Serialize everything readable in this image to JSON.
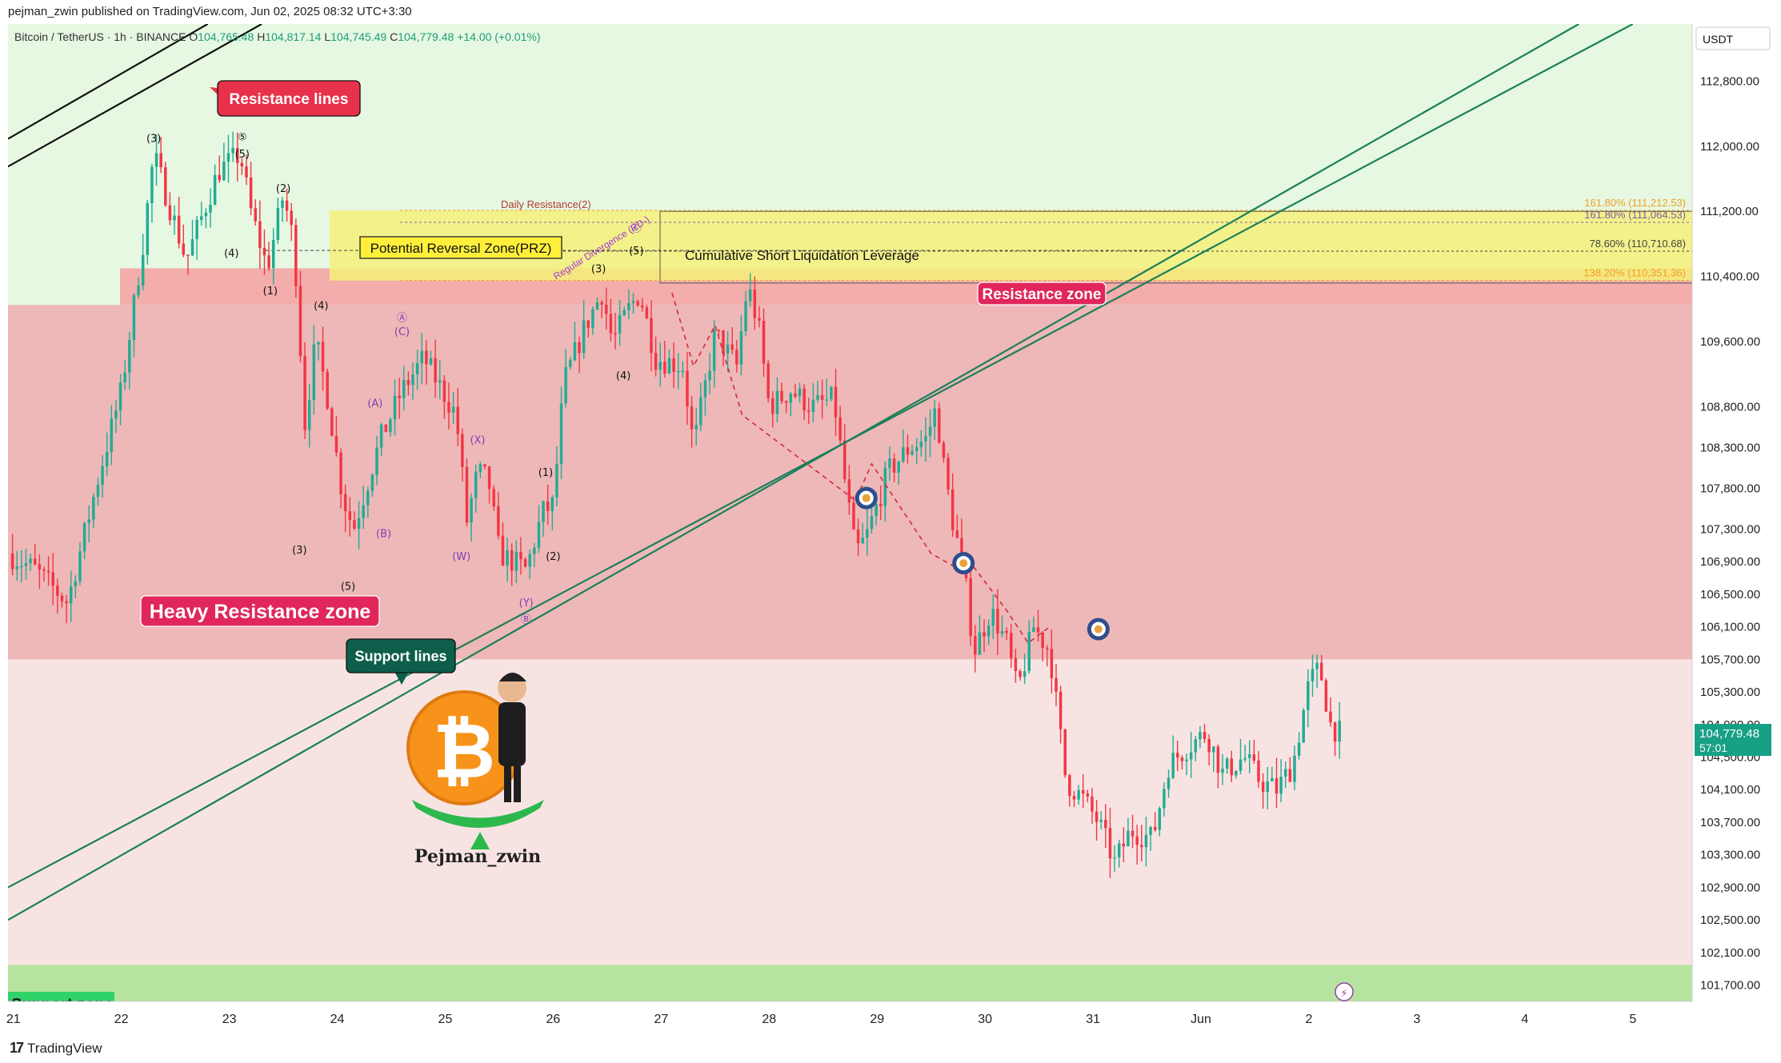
{
  "header": {
    "published": "pejman_zwin published on TradingView.com, Jun 02, 2025 08:32 UTC+3:30",
    "symbol": "Bitcoin / TetherUS · 1h · BINANCE",
    "open_label": "O",
    "open": "104,765.48",
    "high_label": "H",
    "high": "104,817.14",
    "low_label": "L",
    "low": "104,745.49",
    "close_label": "C",
    "close": "104,779.48",
    "change": "+14.00 (+0.01%)"
  },
  "price_axis": {
    "currency": "USDT",
    "current_price": "104,779.48",
    "countdown": "57:01"
  },
  "footer": {
    "logo_text": "TradingView"
  },
  "annotations": {
    "resistance_lines": "Resistance lines",
    "support_lines": "Support lines",
    "heavy_resistance_zone": "Heavy Resistance zone",
    "resistance_zone": "Resistance zone",
    "prz": "Potential Reversal Zone(PRZ)",
    "short_liquidation": "Cumulative Short Liquidation Leverage",
    "daily_resistance": "Daily Resistance(2)",
    "regular_divergence": "Regular Divergence (RD-)",
    "support_zone_partial": "Support zone",
    "author": "Pejman_zwin",
    "wave_labels": [
      {
        "t": "(3)",
        "x": 22.3,
        "y": 112050,
        "c": "#111"
      },
      {
        "t": "⑤",
        "x": 23.12,
        "y": 112070,
        "c": "#111"
      },
      {
        "t": "(5)",
        "x": 23.12,
        "y": 111860,
        "c": "#111"
      },
      {
        "t": "(2)",
        "x": 23.5,
        "y": 111440,
        "c": "#111"
      },
      {
        "t": "(4)",
        "x": 23.02,
        "y": 110640,
        "c": "#111"
      },
      {
        "t": "(1)",
        "x": 23.38,
        "y": 110180,
        "c": "#111"
      },
      {
        "t": "(4)",
        "x": 23.85,
        "y": 110000,
        "c": "#111"
      },
      {
        "t": "(3)",
        "x": 23.65,
        "y": 107000,
        "c": "#111"
      },
      {
        "t": "(5)",
        "x": 24.1,
        "y": 106550,
        "c": "#111"
      },
      {
        "t": "Ⓐ",
        "x": 24.6,
        "y": 109850,
        "c": "#7b3fb5"
      },
      {
        "t": "(C)",
        "x": 24.6,
        "y": 109680,
        "c": "#7b3fb5"
      },
      {
        "t": "(A)",
        "x": 24.35,
        "y": 108800,
        "c": "#7b3fb5"
      },
      {
        "t": "(B)",
        "x": 24.43,
        "y": 107200,
        "c": "#7b3fb5"
      },
      {
        "t": "(X)",
        "x": 25.3,
        "y": 108350,
        "c": "#7b3fb5"
      },
      {
        "t": "(W)",
        "x": 25.15,
        "y": 106920,
        "c": "#7b3fb5"
      },
      {
        "t": "(Y)",
        "x": 25.75,
        "y": 106350,
        "c": "#7b3fb5"
      },
      {
        "t": "Ⓑ",
        "x": 25.75,
        "y": 106150,
        "c": "#7b3fb5"
      },
      {
        "t": "(1)",
        "x": 25.93,
        "y": 107950,
        "c": "#111"
      },
      {
        "t": "(2)",
        "x": 26.0,
        "y": 106920,
        "c": "#111"
      },
      {
        "t": "(3)",
        "x": 26.42,
        "y": 110450,
        "c": "#111"
      },
      {
        "t": "(4)",
        "x": 26.65,
        "y": 109140,
        "c": "#111"
      },
      {
        "t": "(5)",
        "x": 26.77,
        "y": 110670,
        "c": "#111"
      },
      {
        "t": "Ⓒ",
        "x": 26.77,
        "y": 110950,
        "c": "#7b3fb5"
      }
    ],
    "fib_levels": [
      {
        "label": "161.80% (111,212.53)",
        "price": 111212.53,
        "color": "#f0a020"
      },
      {
        "label": "161.80% (111,064.53)",
        "price": 111064.53,
        "color": "#7b5ea7"
      },
      {
        "label": "78.60% (110,710.68)",
        "price": 110710.68,
        "color": "#444444"
      },
      {
        "label": "138.20% (110,351.36)",
        "price": 110351.36,
        "color": "#f0a020"
      }
    ]
  },
  "colors": {
    "bull": "#22ab94",
    "bear": "#f23645",
    "heavy_zone_fill": "#e8a0a0",
    "resistance_zone_fill": "#f4a4a4",
    "prz_fill": "#f5f07a",
    "support_fill": "#b7e3a0",
    "trend_line": "#1a7f5a",
    "label_red": "#e8314a",
    "label_green": "#0d5e4a"
  },
  "chart_data": {
    "type": "candlestick",
    "title": "Bitcoin / TetherUS · 1h · BINANCE",
    "xlabel": "",
    "ylabel": "",
    "x_tick_labels": [
      "21",
      "22",
      "23",
      "24",
      "25",
      "26",
      "27",
      "28",
      "29",
      "30",
      "31",
      "Jun",
      "2",
      "3",
      "4",
      "5"
    ],
    "x_tick_days": [
      21,
      22,
      23,
      24,
      25,
      26,
      27,
      28,
      29,
      30,
      31,
      32,
      33,
      34,
      35,
      36
    ],
    "x_range_days": [
      20.95,
      36.55
    ],
    "y_ticks": [
      112800,
      112000,
      111200,
      110400,
      109600,
      108800,
      108300,
      107800,
      107300,
      106900,
      106500,
      106100,
      105700,
      105300,
      104900,
      104500,
      104100,
      103700,
      103300,
      102900,
      102500,
      102100,
      101700
    ],
    "y_range": [
      101500,
      113500
    ],
    "key_points": [
      [
        20.95,
        107000
      ],
      [
        21.2,
        106800
      ],
      [
        21.5,
        106400
      ],
      [
        21.8,
        108000
      ],
      [
        22.0,
        109000
      ],
      [
        22.2,
        110800
      ],
      [
        22.3,
        111900
      ],
      [
        22.6,
        110600
      ],
      [
        22.9,
        111700
      ],
      [
        23.1,
        111900
      ],
      [
        23.2,
        111200
      ],
      [
        23.35,
        110500
      ],
      [
        23.5,
        111400
      ],
      [
        23.6,
        110800
      ],
      [
        23.7,
        108600
      ],
      [
        23.8,
        109600
      ],
      [
        23.9,
        109000
      ],
      [
        24.05,
        107700
      ],
      [
        24.15,
        107300
      ],
      [
        24.4,
        108400
      ],
      [
        24.6,
        109000
      ],
      [
        24.8,
        109400
      ],
      [
        25.1,
        108700
      ],
      [
        25.2,
        107400
      ],
      [
        25.3,
        108000
      ],
      [
        25.4,
        107900
      ],
      [
        25.5,
        107000
      ],
      [
        25.75,
        106800
      ],
      [
        25.9,
        107500
      ],
      [
        26.0,
        107600
      ],
      [
        26.1,
        109100
      ],
      [
        26.3,
        109800
      ],
      [
        26.45,
        110200
      ],
      [
        26.55,
        109600
      ],
      [
        26.7,
        110000
      ],
      [
        26.8,
        110200
      ],
      [
        26.95,
        109400
      ],
      [
        27.2,
        109300
      ],
      [
        27.3,
        108300
      ],
      [
        27.5,
        109700
      ],
      [
        27.7,
        109300
      ],
      [
        27.8,
        110300
      ],
      [
        27.9,
        109800
      ],
      [
        28.0,
        108800
      ],
      [
        28.2,
        109000
      ],
      [
        28.4,
        108800
      ],
      [
        28.6,
        108900
      ],
      [
        28.7,
        107900
      ],
      [
        28.8,
        107000
      ],
      [
        28.9,
        107200
      ],
      [
        29.1,
        108000
      ],
      [
        29.3,
        108300
      ],
      [
        29.45,
        108400
      ],
      [
        29.55,
        108800
      ],
      [
        29.6,
        108200
      ],
      [
        29.7,
        107400
      ],
      [
        29.8,
        106800
      ],
      [
        29.9,
        105800
      ],
      [
        30.05,
        106300
      ],
      [
        30.2,
        105900
      ],
      [
        30.3,
        105300
      ],
      [
        30.45,
        106100
      ],
      [
        30.6,
        105800
      ],
      [
        30.75,
        104200
      ],
      [
        30.9,
        104000
      ],
      [
        31.05,
        103700
      ],
      [
        31.2,
        103200
      ],
      [
        31.35,
        103600
      ],
      [
        31.55,
        103500
      ],
      [
        31.7,
        104400
      ],
      [
        31.85,
        104600
      ],
      [
        32.05,
        104800
      ],
      [
        32.2,
        104300
      ],
      [
        32.4,
        104500
      ],
      [
        32.55,
        104200
      ],
      [
        32.7,
        104100
      ],
      [
        32.85,
        104400
      ],
      [
        33.0,
        105400
      ],
      [
        33.1,
        105600
      ],
      [
        33.2,
        104900
      ],
      [
        33.32,
        104750
      ]
    ],
    "zones": [
      {
        "name": "Heavy Resistance zone",
        "from": 105700,
        "to": 110050
      },
      {
        "name": "Resistance zone",
        "from": 110050,
        "to": 110500
      },
      {
        "name": "Potential Reversal Zone(PRZ)",
        "from": 110350,
        "to": 111212
      },
      {
        "name": "Support zone",
        "from": 101300,
        "to": 101950
      }
    ],
    "trend_lines": [
      {
        "name": "Resistance lines",
        "p1": [
          20.95,
          112090
        ],
        "p2": [
          22.8,
          113500
        ]
      },
      {
        "name": "Resistance lines",
        "p1": [
          20.95,
          111750
        ],
        "p2": [
          23.3,
          113500
        ]
      },
      {
        "name": "Support lines",
        "p1": [
          20.95,
          102900
        ],
        "p2": [
          36.0,
          113500
        ]
      },
      {
        "name": "Support lines",
        "p1": [
          20.95,
          102500
        ],
        "p2": [
          35.5,
          113500
        ]
      }
    ],
    "targets": [
      [
        28.9,
        107680
      ],
      [
        29.8,
        106880
      ],
      [
        31.05,
        106070
      ]
    ],
    "grid": false,
    "legend": "none"
  }
}
